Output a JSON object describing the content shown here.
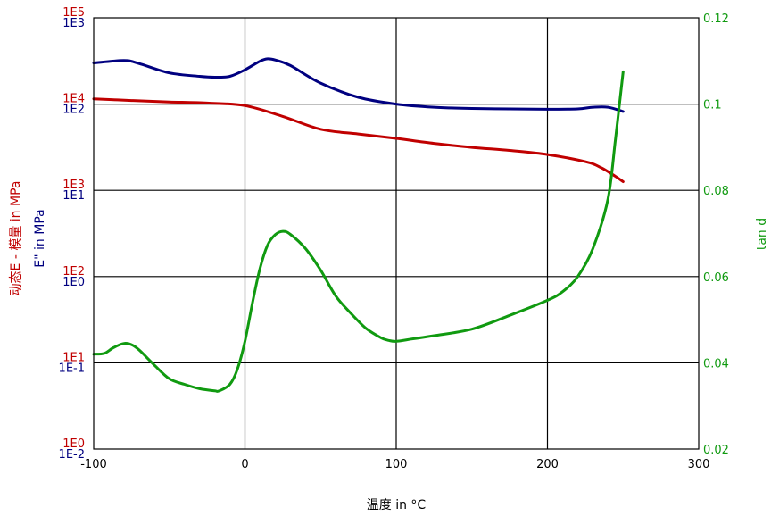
{
  "chart_data": {
    "type": "line",
    "xlabel": "温度 in °C",
    "ylabel_red": "动态E - 模量 in MPa",
    "ylabel_blue": "E\" in MPa",
    "ylabel_right": "tan d",
    "xlim": [
      -100,
      300
    ],
    "x_ticks": [
      "-100",
      "0",
      "100",
      "200",
      "300"
    ],
    "y_left_red": {
      "scale": "log",
      "lim": [
        1,
        100000
      ],
      "ticks": [
        "1E0",
        "1E1",
        "1E2",
        "1E3",
        "1E4",
        "1E5"
      ]
    },
    "y_left_blue": {
      "scale": "log",
      "lim": [
        0.01,
        1000
      ],
      "ticks": [
        "1E-2",
        "1E-1",
        "1E0",
        "1E1",
        "1E2",
        "1E3"
      ]
    },
    "y_right": {
      "scale": "linear",
      "lim": [
        0.02,
        0.12
      ],
      "ticks": [
        "0.02",
        "0.04",
        "0.06",
        "0.08",
        "0.1",
        "0.12"
      ]
    },
    "grid": true,
    "colors": {
      "red": "#c00000",
      "blue": "#000080",
      "green": "#109a10"
    },
    "series": [
      {
        "axis": "blue",
        "color": "#000080",
        "x": [
          -100,
          -80,
          -70,
          -50,
          -30,
          -20,
          -10,
          0,
          10,
          15,
          20,
          30,
          50,
          75,
          100,
          125,
          150,
          175,
          200,
          220,
          230,
          240,
          250
        ],
        "y": [
          300,
          320,
          295,
          230,
          210,
          205,
          210,
          250,
          315,
          335,
          325,
          280,
          175,
          120,
          100,
          92,
          89,
          88,
          87,
          88,
          92,
          92,
          82
        ]
      },
      {
        "axis": "red",
        "color": "#c00000",
        "x": [
          -100,
          -75,
          -50,
          -25,
          0,
          25,
          50,
          75,
          100,
          125,
          150,
          175,
          200,
          225,
          235,
          245,
          250
        ],
        "y": [
          11500,
          11000,
          10600,
          10300,
          9600,
          7200,
          5100,
          4500,
          4000,
          3500,
          3150,
          2900,
          2600,
          2150,
          1850,
          1450,
          1260
        ]
      },
      {
        "axis": "right",
        "color": "#109a10",
        "x": [
          -100,
          -93,
          -87,
          -80,
          -75,
          -70,
          -60,
          -50,
          -40,
          -30,
          -20,
          -17,
          -10,
          -5,
          0,
          5,
          10,
          15,
          20,
          25,
          30,
          40,
          50,
          60,
          70,
          80,
          90,
          95,
          100,
          110,
          125,
          150,
          175,
          200,
          210,
          220,
          230,
          240,
          245,
          250
        ],
        "y": [
          0.042,
          0.0422,
          0.0435,
          0.0445,
          0.0442,
          0.043,
          0.0395,
          0.0363,
          0.035,
          0.034,
          0.0335,
          0.0335,
          0.035,
          0.0385,
          0.045,
          0.054,
          0.062,
          0.0673,
          0.0697,
          0.0705,
          0.0698,
          0.0665,
          0.0615,
          0.0555,
          0.0515,
          0.048,
          0.0458,
          0.0452,
          0.045,
          0.0455,
          0.0463,
          0.0478,
          0.051,
          0.0545,
          0.0565,
          0.06,
          0.0665,
          0.078,
          0.092,
          0.1075
        ]
      }
    ]
  }
}
